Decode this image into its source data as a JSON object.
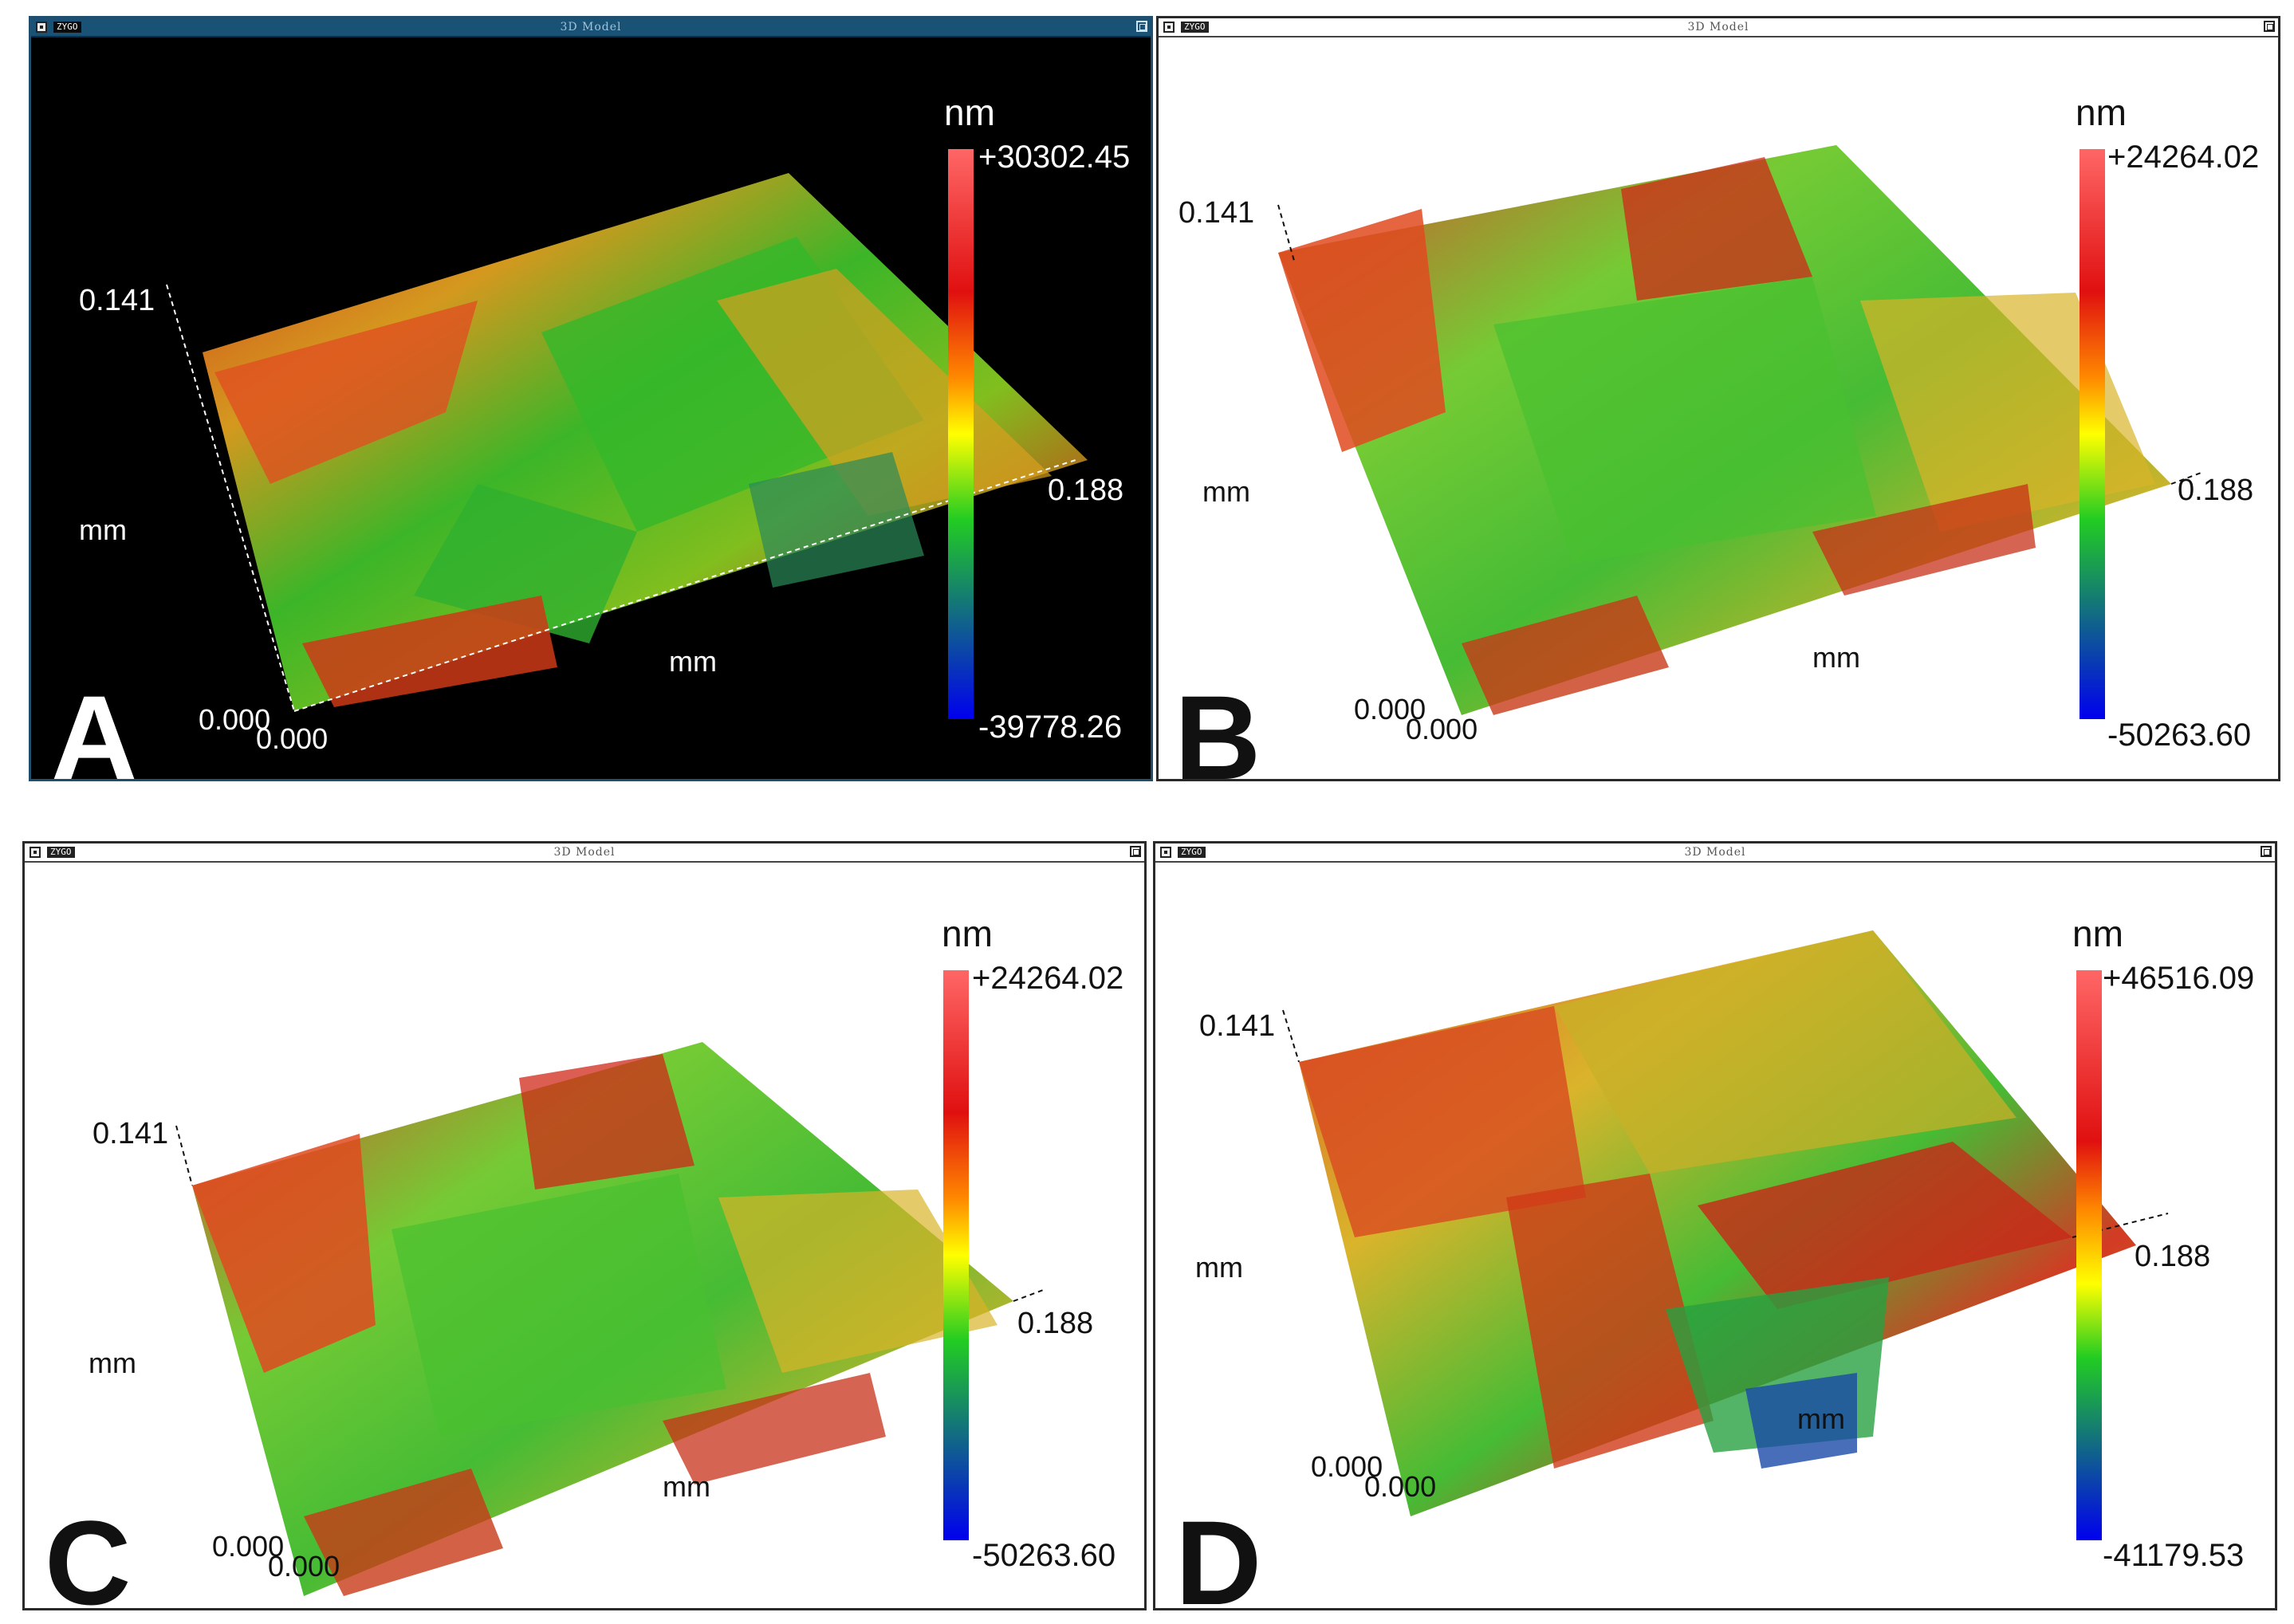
{
  "panels": [
    {
      "letter": "A",
      "window_title": "3D Model",
      "app_tag": "ZYGO",
      "theme": "dark",
      "unit": "nm",
      "scale_max": "+30302.45",
      "scale_min": "-39778.26",
      "axis_y_max": "0.141",
      "axis_x_max": "0.188",
      "axis_y_origin": "0.000",
      "axis_x_origin": "0.000",
      "axis_y_unit": "mm",
      "axis_x_unit": "mm"
    },
    {
      "letter": "B",
      "window_title": "3D Model",
      "app_tag": "ZYGO",
      "theme": "light",
      "unit": "nm",
      "scale_max": "+24264.02",
      "scale_min": "-50263.60",
      "axis_y_max": "0.141",
      "axis_x_max": "0.188",
      "axis_y_origin": "0.000",
      "axis_x_origin": "0.000",
      "axis_y_unit": "mm",
      "axis_x_unit": "mm"
    },
    {
      "letter": "C",
      "window_title": "3D Model",
      "app_tag": "ZYGO",
      "theme": "light",
      "unit": "nm",
      "scale_max": "+24264.02",
      "scale_min": "-50263.60",
      "axis_y_max": "0.141",
      "axis_x_max": "0.188",
      "axis_y_origin": "0.000",
      "axis_x_origin": "0.000",
      "axis_y_unit": "mm",
      "axis_x_unit": "mm"
    },
    {
      "letter": "D",
      "window_title": "3D Model",
      "app_tag": "ZYGO",
      "theme": "light",
      "unit": "nm",
      "scale_max": "+46516.09",
      "scale_min": "-41179.53",
      "axis_y_max": "0.141",
      "axis_x_max": "0.188",
      "axis_y_origin": "0.000",
      "axis_x_origin": "0.000",
      "axis_y_unit": "mm",
      "axis_x_unit": "mm"
    }
  ],
  "colors": {
    "scale_top": "#ff6666",
    "scale_red": "#e01010",
    "scale_orange": "#ff8800",
    "scale_yellow": "#ffff00",
    "scale_green": "#22cc22",
    "scale_blue": "#0000ee"
  }
}
